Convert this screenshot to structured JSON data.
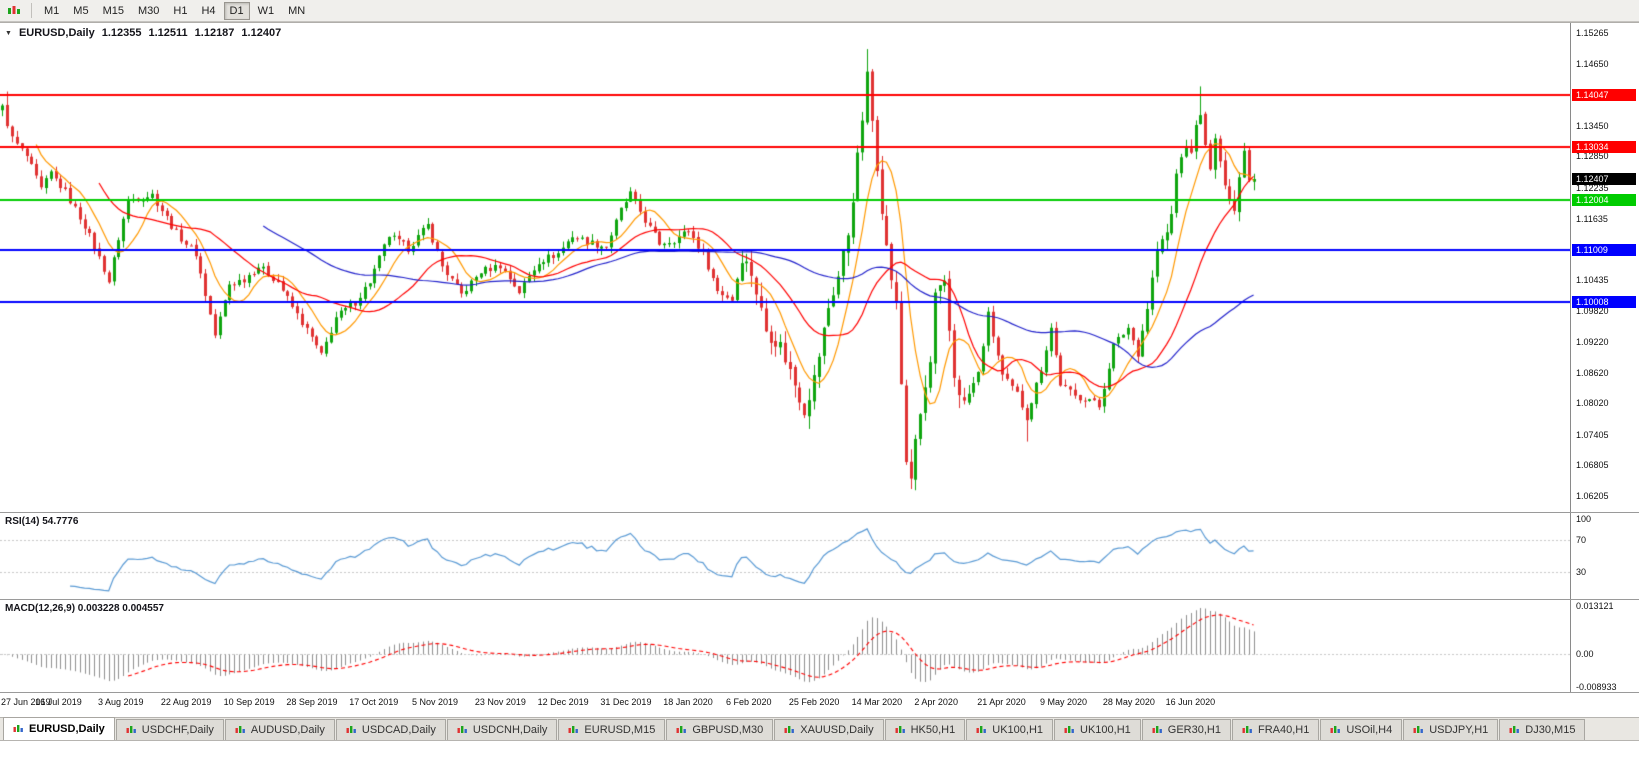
{
  "toolbar": {
    "timeframes": [
      {
        "label": "M1",
        "active": false
      },
      {
        "label": "M5",
        "active": false
      },
      {
        "label": "M15",
        "active": false
      },
      {
        "label": "M30",
        "active": false
      },
      {
        "label": "H1",
        "active": false
      },
      {
        "label": "H4",
        "active": false
      },
      {
        "label": "D1",
        "active": true
      },
      {
        "label": "W1",
        "active": false
      },
      {
        "label": "MN",
        "active": false
      }
    ]
  },
  "chart_header": {
    "symbol_label": "EURUSD,Daily",
    "open": "1.12355",
    "high": "1.12511",
    "low": "1.12187",
    "close": "1.12407"
  },
  "chart_data": {
    "type": "candlestick",
    "symbol": "EURUSD",
    "period": "Daily",
    "price_axis": {
      "min": 1.06205,
      "max": 1.15265,
      "tick_labels": [
        "1.15265",
        "1.14650",
        "1.13450",
        "1.12850",
        "1.12235",
        "1.11635",
        "1.10435",
        "1.09820",
        "1.09220",
        "1.08620",
        "1.08020",
        "1.07405",
        "1.06805",
        "1.06205"
      ]
    },
    "x_axis": {
      "labels": [
        "27 Jun 2019",
        "16 Jul 2019",
        "3 Aug 2019",
        "22 Aug 2019",
        "10 Sep 2019",
        "28 Sep 2019",
        "17 Oct 2019",
        "5 Nov 2019",
        "23 Nov 2019",
        "12 Dec 2019",
        "31 Dec 2019",
        "18 Jan 2020",
        "6 Feb 2020",
        "25 Feb 2020",
        "14 Mar 2020",
        "2 Apr 2020",
        "21 Apr 2020",
        "9 May 2020",
        "28 May 2020",
        "16 Jun 2020"
      ],
      "label_indices": [
        0,
        13,
        26,
        39,
        52,
        65,
        78,
        91,
        104,
        117,
        130,
        143,
        156,
        169,
        182,
        195,
        208,
        221,
        234,
        247
      ],
      "num_candles": 260,
      "plot_fraction": 0.8
    },
    "close_anchors": [
      [
        0,
        1.138
      ],
      [
        2,
        1.132
      ],
      [
        5,
        1.1285
      ],
      [
        8,
        1.122
      ],
      [
        10,
        1.1252
      ],
      [
        13,
        1.1215
      ],
      [
        17,
        1.115
      ],
      [
        21,
        1.1065
      ],
      [
        22,
        1.104
      ],
      [
        24,
        1.1125
      ],
      [
        26,
        1.12
      ],
      [
        31,
        1.121
      ],
      [
        36,
        1.1135
      ],
      [
        40,
        1.1095
      ],
      [
        44,
        1.0935
      ],
      [
        47,
        1.1035
      ],
      [
        50,
        1.1045
      ],
      [
        53,
        1.107
      ],
      [
        57,
        1.104
      ],
      [
        60,
        1.099
      ],
      [
        64,
        1.093
      ],
      [
        66,
        1.0895
      ],
      [
        69,
        1.097
      ],
      [
        73,
        1.1
      ],
      [
        76,
        1.104
      ],
      [
        80,
        1.113
      ],
      [
        84,
        1.1105
      ],
      [
        88,
        1.115
      ],
      [
        91,
        1.107
      ],
      [
        95,
        1.1015
      ],
      [
        99,
        1.106
      ],
      [
        103,
        1.1072
      ],
      [
        107,
        1.102
      ],
      [
        111,
        1.108
      ],
      [
        115,
        1.1095
      ],
      [
        118,
        1.113
      ],
      [
        121,
        1.1118
      ],
      [
        125,
        1.1108
      ],
      [
        128,
        1.118
      ],
      [
        130,
        1.1212
      ],
      [
        133,
        1.116
      ],
      [
        136,
        1.1115
      ],
      [
        139,
        1.1122
      ],
      [
        142,
        1.114
      ],
      [
        145,
        1.1095
      ],
      [
        148,
        1.1022
      ],
      [
        151,
        1.1005
      ],
      [
        153,
        1.109
      ],
      [
        155,
        1.1058
      ],
      [
        158,
        1.0945
      ],
      [
        161,
        1.0915
      ],
      [
        164,
        1.084
      ],
      [
        166,
        1.079
      ],
      [
        168,
        1.085
      ],
      [
        171,
        1.099
      ],
      [
        173,
        1.105
      ],
      [
        175,
        1.1135
      ],
      [
        177,
        1.128
      ],
      [
        179,
        1.144
      ],
      [
        181,
        1.127
      ],
      [
        183,
        1.1105
      ],
      [
        185,
        1.099
      ],
      [
        187,
        1.069
      ],
      [
        188,
        1.066
      ],
      [
        190,
        1.078
      ],
      [
        192,
        1.088
      ],
      [
        193,
        1.101
      ],
      [
        195,
        1.103
      ],
      [
        197,
        1.0855
      ],
      [
        199,
        1.08
      ],
      [
        202,
        1.086
      ],
      [
        204,
        1.0975
      ],
      [
        207,
        1.0855
      ],
      [
        210,
        1.082
      ],
      [
        212,
        1.0775
      ],
      [
        215,
        1.087
      ],
      [
        217,
        1.095
      ],
      [
        219,
        1.084
      ],
      [
        222,
        1.0815
      ],
      [
        225,
        1.081
      ],
      [
        227,
        1.0795
      ],
      [
        230,
        1.0915
      ],
      [
        233,
        1.095
      ],
      [
        235,
        1.09
      ],
      [
        237,
        1.099
      ],
      [
        239,
        1.11
      ],
      [
        241,
        1.1135
      ],
      [
        242,
        1.117
      ],
      [
        243,
        1.125
      ],
      [
        244,
        1.129
      ],
      [
        246,
        1.1298
      ],
      [
        247,
        1.134
      ],
      [
        248,
        1.1375
      ],
      [
        249,
        1.13
      ],
      [
        250,
        1.1255
      ],
      [
        251,
        1.1322
      ],
      [
        252,
        1.1265
      ],
      [
        254,
        1.121
      ],
      [
        255,
        1.118
      ],
      [
        257,
        1.1305
      ],
      [
        258,
        1.124
      ],
      [
        259,
        1.1241
      ]
    ],
    "spike_highs": [
      [
        1,
        1.1412
      ],
      [
        179,
        1.1495
      ],
      [
        248,
        1.1422
      ]
    ],
    "spike_lows": [
      [
        166,
        1.0778
      ],
      [
        188,
        1.0636
      ],
      [
        212,
        1.0727
      ]
    ],
    "hlines": [
      {
        "price": 1.14047,
        "color": "#FF0000",
        "label": "1.14047"
      },
      {
        "price": 1.13034,
        "color": "#FF0000",
        "label": "1.13034"
      },
      {
        "price": 1.12004,
        "color": "#00CC00",
        "label": "1.12004"
      },
      {
        "price": 1.11009,
        "color": "#0000FF",
        "label": "1.11009"
      },
      {
        "price": 1.10008,
        "color": "#0000FF",
        "label": "1.10008"
      }
    ],
    "current_price": 1.12407,
    "moving_averages": [
      {
        "name": "MA fast",
        "period": 8,
        "color": "#FF9900"
      },
      {
        "name": "MA mid",
        "period": 21,
        "color": "#FF0000"
      },
      {
        "name": "MA slow",
        "period": 55,
        "color": "#2222CC"
      }
    ],
    "colors": {
      "up": "#0FA50F",
      "down": "#E03232"
    },
    "indicators": {
      "rsi": {
        "label": "RSI(14) 54.7776",
        "period": 14,
        "current": 54.7776,
        "axis_labels": [
          [
            "100",
            100
          ],
          [
            "70",
            70
          ],
          [
            "30",
            30
          ]
        ],
        "levels": [
          70,
          30
        ],
        "color": "#5B9BD5"
      },
      "macd": {
        "label": "MACD(12,26,9) 0.003228 0.004557",
        "fast": 12,
        "slow": 26,
        "signal": 9,
        "main_value": 0.003228,
        "signal_value": 0.004557,
        "axis_max": 0.013121,
        "axis_min": -0.008933,
        "axis_labels": [
          [
            "0.013121",
            0.013121
          ],
          [
            "0.00",
            0
          ],
          [
            "-0.008933",
            -0.008933
          ]
        ],
        "hist_color": "#8F8F8F",
        "signal_color": "#FF0000"
      }
    }
  },
  "price_badges": [
    {
      "text": "1.14047",
      "price": 1.14047,
      "bg": "#FF0000",
      "fg": "#FFFFFF"
    },
    {
      "text": "1.13034",
      "price": 1.13034,
      "bg": "#FF0000",
      "fg": "#FFFFFF"
    },
    {
      "text": "1.12407",
      "price": 1.12407,
      "bg": "#000000",
      "fg": "#FFFFFF"
    },
    {
      "text": "1.12004",
      "price": 1.12004,
      "bg": "#00CC00",
      "fg": "#FFFFFF"
    },
    {
      "text": "1.11009",
      "price": 1.11009,
      "bg": "#0000FF",
      "fg": "#FFFFFF"
    },
    {
      "text": "1.10008",
      "price": 1.10008,
      "bg": "#0000FF",
      "fg": "#FFFFFF"
    }
  ],
  "tabs": [
    {
      "label": "EURUSD,Daily",
      "active": true
    },
    {
      "label": "USDCHF,Daily",
      "active": false
    },
    {
      "label": "AUDUSD,Daily",
      "active": false
    },
    {
      "label": "USDCAD,Daily",
      "active": false
    },
    {
      "label": "USDCNH,Daily",
      "active": false
    },
    {
      "label": "EURUSD,M15",
      "active": false
    },
    {
      "label": "GBPUSD,M30",
      "active": false
    },
    {
      "label": "XAUUSD,Daily",
      "active": false
    },
    {
      "label": "HK50,H1",
      "active": false
    },
    {
      "label": "UK100,H1",
      "active": false
    },
    {
      "label": "UK100,H1",
      "active": false
    },
    {
      "label": "GER30,H1",
      "active": false
    },
    {
      "label": "FRA40,H1",
      "active": false
    },
    {
      "label": "USOil,H4",
      "active": false
    },
    {
      "label": "USDJPY,H1",
      "active": false
    },
    {
      "label": "DJ30,M15",
      "active": false
    }
  ]
}
